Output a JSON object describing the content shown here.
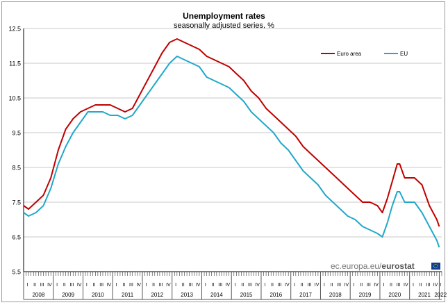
{
  "chart_data": {
    "type": "line",
    "title": "Unemployment rates",
    "subtitle": "seasonally adjusted series, %",
    "ylim": [
      5.5,
      12.5
    ],
    "yticks": [
      "12.5",
      "11.5",
      "10.5",
      "9.5",
      "8.5",
      "7.5",
      "6.5",
      "5.5"
    ],
    "grid": true,
    "legend_position": "top-right",
    "x_start": "2008-01",
    "x_end": "2022-01",
    "years": [
      "2008",
      "2009",
      "2010",
      "2011",
      "2012",
      "2013",
      "2014",
      "2015",
      "2016",
      "2017",
      "2018",
      "2019",
      "2020",
      "2021",
      "2022"
    ],
    "quarters": [
      "I",
      "II",
      "III",
      "IV"
    ],
    "series": [
      {
        "name": "Euro area",
        "color": "#c00000",
        "points": [
          [
            "2008-01",
            7.4
          ],
          [
            "2008-03",
            7.3
          ],
          [
            "2008-06",
            7.5
          ],
          [
            "2008-09",
            7.7
          ],
          [
            "2008-12",
            8.2
          ],
          [
            "2009-03",
            9.0
          ],
          [
            "2009-06",
            9.6
          ],
          [
            "2009-09",
            9.9
          ],
          [
            "2009-12",
            10.1
          ],
          [
            "2010-03",
            10.2
          ],
          [
            "2010-06",
            10.3
          ],
          [
            "2010-09",
            10.3
          ],
          [
            "2010-12",
            10.3
          ],
          [
            "2011-03",
            10.2
          ],
          [
            "2011-06",
            10.1
          ],
          [
            "2011-09",
            10.2
          ],
          [
            "2011-12",
            10.6
          ],
          [
            "2012-03",
            11.0
          ],
          [
            "2012-06",
            11.4
          ],
          [
            "2012-09",
            11.8
          ],
          [
            "2012-12",
            12.1
          ],
          [
            "2013-03",
            12.2
          ],
          [
            "2013-06",
            12.1
          ],
          [
            "2013-09",
            12.0
          ],
          [
            "2013-12",
            11.9
          ],
          [
            "2014-03",
            11.7
          ],
          [
            "2014-06",
            11.6
          ],
          [
            "2014-09",
            11.5
          ],
          [
            "2014-12",
            11.4
          ],
          [
            "2015-03",
            11.2
          ],
          [
            "2015-06",
            11.0
          ],
          [
            "2015-09",
            10.7
          ],
          [
            "2015-12",
            10.5
          ],
          [
            "2016-03",
            10.2
          ],
          [
            "2016-06",
            10.0
          ],
          [
            "2016-09",
            9.8
          ],
          [
            "2016-12",
            9.6
          ],
          [
            "2017-03",
            9.4
          ],
          [
            "2017-06",
            9.1
          ],
          [
            "2017-09",
            8.9
          ],
          [
            "2017-12",
            8.7
          ],
          [
            "2018-03",
            8.5
          ],
          [
            "2018-06",
            8.3
          ],
          [
            "2018-09",
            8.1
          ],
          [
            "2018-12",
            7.9
          ],
          [
            "2019-03",
            7.7
          ],
          [
            "2019-06",
            7.5
          ],
          [
            "2019-09",
            7.5
          ],
          [
            "2019-12",
            7.4
          ],
          [
            "2020-02",
            7.2
          ],
          [
            "2020-04",
            7.6
          ],
          [
            "2020-06",
            8.1
          ],
          [
            "2020-08",
            8.6
          ],
          [
            "2020-09",
            8.6
          ],
          [
            "2020-11",
            8.2
          ],
          [
            "2021-01",
            8.2
          ],
          [
            "2021-03",
            8.2
          ],
          [
            "2021-06",
            8.0
          ],
          [
            "2021-09",
            7.4
          ],
          [
            "2021-12",
            7.0
          ],
          [
            "2022-01",
            6.8
          ]
        ]
      },
      {
        "name": "EU",
        "color": "#21a8c9",
        "points": [
          [
            "2008-01",
            7.2
          ],
          [
            "2008-03",
            7.1
          ],
          [
            "2008-06",
            7.2
          ],
          [
            "2008-09",
            7.4
          ],
          [
            "2008-12",
            7.9
          ],
          [
            "2009-03",
            8.6
          ],
          [
            "2009-06",
            9.1
          ],
          [
            "2009-09",
            9.5
          ],
          [
            "2009-12",
            9.8
          ],
          [
            "2010-03",
            10.1
          ],
          [
            "2010-06",
            10.1
          ],
          [
            "2010-09",
            10.1
          ],
          [
            "2010-12",
            10.0
          ],
          [
            "2011-03",
            10.0
          ],
          [
            "2011-06",
            9.9
          ],
          [
            "2011-09",
            10.0
          ],
          [
            "2011-12",
            10.3
          ],
          [
            "2012-03",
            10.6
          ],
          [
            "2012-06",
            10.9
          ],
          [
            "2012-09",
            11.2
          ],
          [
            "2012-12",
            11.5
          ],
          [
            "2013-03",
            11.7
          ],
          [
            "2013-06",
            11.6
          ],
          [
            "2013-09",
            11.5
          ],
          [
            "2013-12",
            11.4
          ],
          [
            "2014-03",
            11.1
          ],
          [
            "2014-06",
            11.0
          ],
          [
            "2014-09",
            10.9
          ],
          [
            "2014-12",
            10.8
          ],
          [
            "2015-03",
            10.6
          ],
          [
            "2015-06",
            10.4
          ],
          [
            "2015-09",
            10.1
          ],
          [
            "2015-12",
            9.9
          ],
          [
            "2016-03",
            9.7
          ],
          [
            "2016-06",
            9.5
          ],
          [
            "2016-09",
            9.2
          ],
          [
            "2016-12",
            9.0
          ],
          [
            "2017-03",
            8.7
          ],
          [
            "2017-06",
            8.4
          ],
          [
            "2017-09",
            8.2
          ],
          [
            "2017-12",
            8.0
          ],
          [
            "2018-03",
            7.7
          ],
          [
            "2018-06",
            7.5
          ],
          [
            "2018-09",
            7.3
          ],
          [
            "2018-12",
            7.1
          ],
          [
            "2019-03",
            7.0
          ],
          [
            "2019-06",
            6.8
          ],
          [
            "2019-09",
            6.7
          ],
          [
            "2019-12",
            6.6
          ],
          [
            "2020-02",
            6.5
          ],
          [
            "2020-04",
            6.9
          ],
          [
            "2020-06",
            7.4
          ],
          [
            "2020-08",
            7.8
          ],
          [
            "2020-09",
            7.8
          ],
          [
            "2020-11",
            7.5
          ],
          [
            "2021-01",
            7.5
          ],
          [
            "2021-03",
            7.5
          ],
          [
            "2021-06",
            7.2
          ],
          [
            "2021-09",
            6.8
          ],
          [
            "2021-12",
            6.4
          ],
          [
            "2022-01",
            6.2
          ]
        ]
      }
    ]
  },
  "source": {
    "prefix": "ec.europa.eu/",
    "brand": "eurostat"
  },
  "flag_color": "#0e3e8f"
}
